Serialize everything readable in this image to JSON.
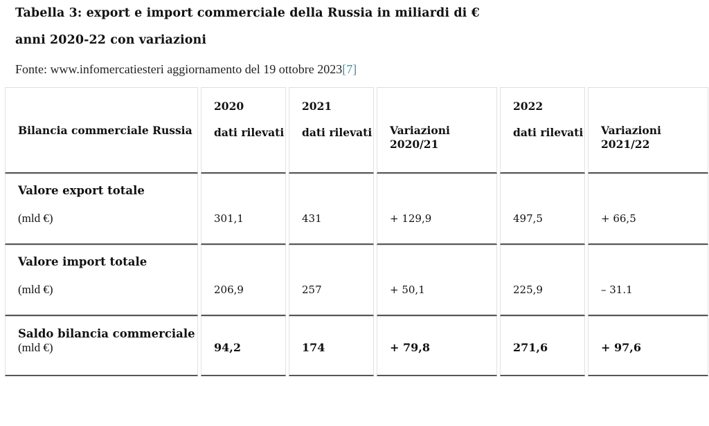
{
  "title_line1": "Tabella 3: export e import commerciale della Russia in miliardi di €",
  "title_line2": "anni 2020-22 con variazioni",
  "source": {
    "text": "Fonte: www.infomercatiesteri aggiornamento del 19 ottobre 2023",
    "ref": "[7]"
  },
  "header": {
    "col0": "Bilancia commerciale Russia",
    "year_2020": "2020",
    "year_2021": "2021",
    "year_2022": "2022",
    "dati_2020": "dati rilevati",
    "dati_2021": "dati rilevati",
    "dati_2022": "dati rilevati",
    "var_2020_21": "Variazioni 2020/21",
    "var_2021_22": "Variazioni 2021/22"
  },
  "rows": [
    {
      "label": "Valore export totale",
      "unit": "(mld €)",
      "v2020": "301,1",
      "v2021": "431",
      "var20_21": "+ 129,9",
      "v2022": "497,5",
      "var21_22": "+ 66,5"
    },
    {
      "label": "Valore import totale",
      "unit": "(mld €)",
      "v2020": "206,9",
      "v2021": "257",
      "var20_21": "+ 50,1",
      "v2022": "225,9",
      "var21_22": "– 31.1"
    },
    {
      "label": "Saldo bilancia commerciale",
      "unit": "(mld €)",
      "v2020": "94,2",
      "v2021": "174",
      "var20_21": "+ 79,8",
      "v2022": "271,6",
      "var21_22": "+ 97,6"
    }
  ]
}
